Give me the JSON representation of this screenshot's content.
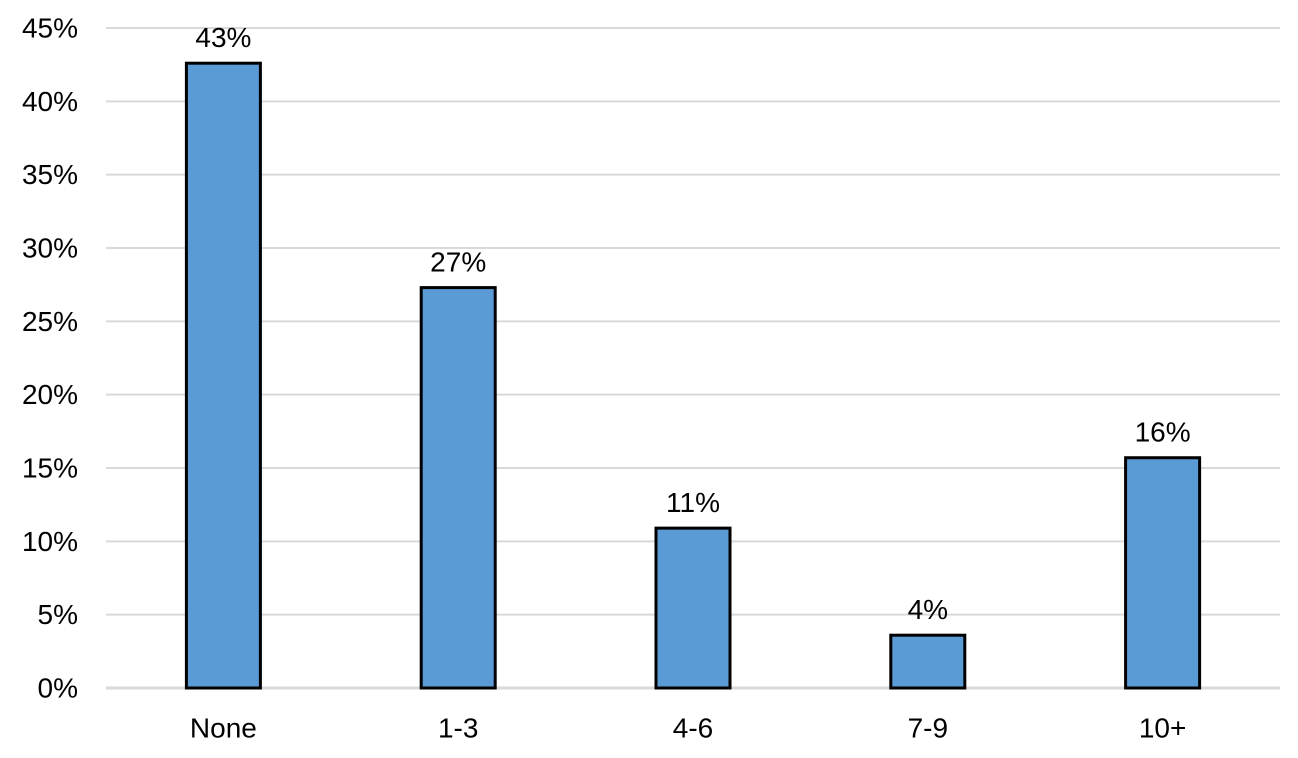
{
  "chart_data": {
    "type": "bar",
    "categories": [
      "None",
      "1-3",
      "4-6",
      "7-9",
      "10+"
    ],
    "values": [
      42.6,
      27.3,
      10.9,
      3.6,
      15.7
    ],
    "data_labels": [
      "43%",
      "27%",
      "11%",
      "4%",
      "16%"
    ],
    "title": "",
    "xlabel": "",
    "ylabel": "",
    "ylim": [
      0,
      45
    ],
    "y_ticks": [
      "0%",
      "5%",
      "10%",
      "15%",
      "20%",
      "25%",
      "30%",
      "35%",
      "40%",
      "45%"
    ],
    "y_tick_values": [
      0,
      5,
      10,
      15,
      20,
      25,
      30,
      35,
      40,
      45
    ],
    "grid": true,
    "legend": "none",
    "colors": {
      "bar_fill": "#5B9BD5",
      "bar_stroke": "#000000",
      "grid": "#D9D9D9",
      "axis": "#D9D9D9",
      "text": "#000000"
    }
  }
}
